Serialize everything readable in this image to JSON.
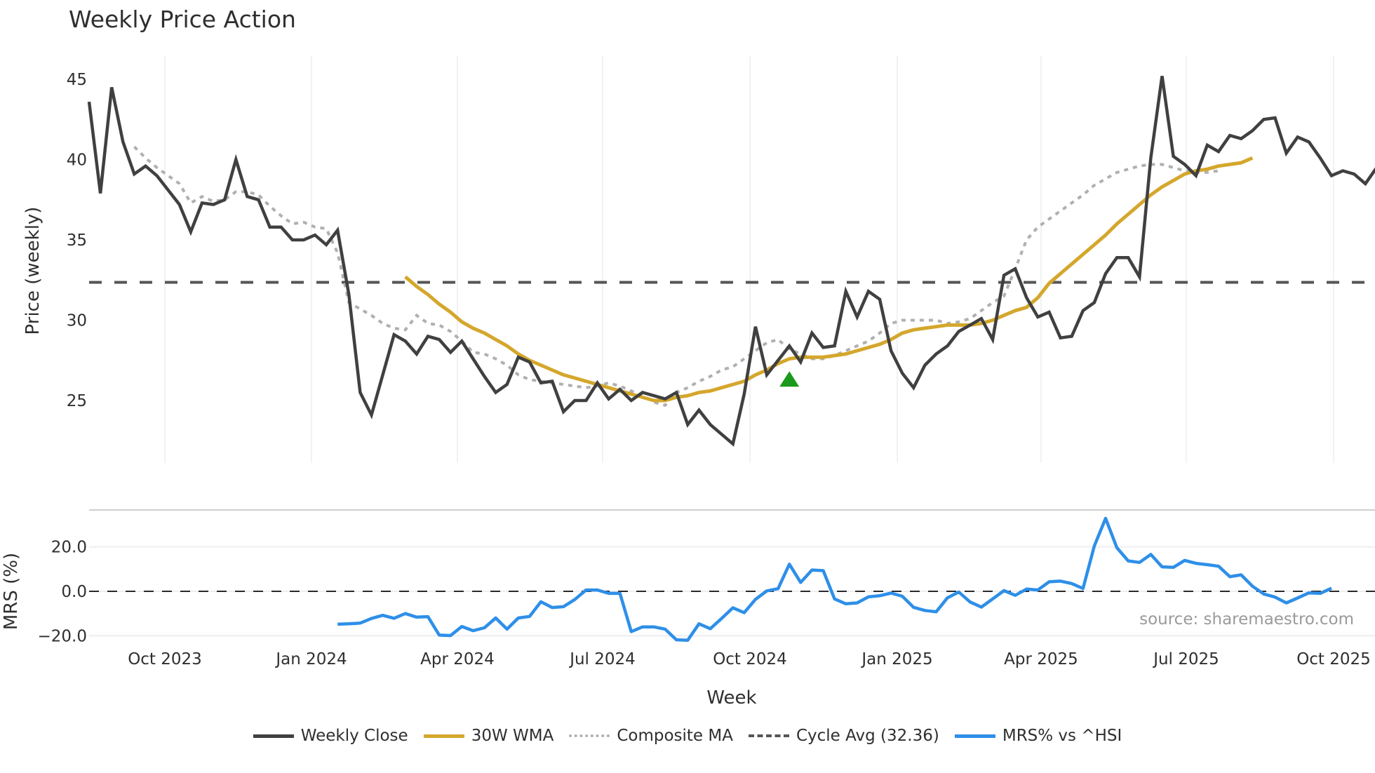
{
  "header": {
    "title": "Weekly Price Action"
  },
  "axes": {
    "price_ylabel": "Price (weekly)",
    "mrs_ylabel": "MRS (%)",
    "xlabel": "Week",
    "price_ticks": [
      "45",
      "40",
      "35",
      "30",
      "25"
    ],
    "mrs_ticks": [
      "20.0",
      "0.0",
      "−20.0"
    ],
    "x_ticks": [
      "Oct 2023",
      "Jan 2024",
      "Apr 2024",
      "Jul 2024",
      "Oct 2024",
      "Jan 2025",
      "Apr 2025",
      "Jul 2025",
      "Oct 2025"
    ]
  },
  "source_note": "source: sharemaestro.com",
  "legend": [
    {
      "label": "Weekly Close",
      "color": "#404040",
      "style": "solid"
    },
    {
      "label": "30W WMA",
      "color": "#d4a72c",
      "style": "solid"
    },
    {
      "label": "Composite MA",
      "color": "#b0b0b0",
      "style": "dotted"
    },
    {
      "label": "Cycle Avg (32.36)",
      "color": "#555555",
      "style": "dashed"
    },
    {
      "label": "MRS% vs ^HSI",
      "color": "#2e8fe8",
      "style": "solid"
    }
  ],
  "colors": {
    "close": "#404040",
    "wma": "#d4a72c",
    "composite": "#b0b0b0",
    "cycle": "#555555",
    "mrs": "#2e8fe8",
    "signal": "#1a9a1a",
    "grid": "#eceef2"
  },
  "chart_data": [
    {
      "type": "line",
      "title": "Weekly Price Action",
      "xlabel": "Week",
      "ylabel": "Price (weekly)",
      "ylim": [
        21.5,
        46
      ],
      "x_tick_labels": [
        "Oct 2023",
        "Jan 2024",
        "Apr 2024",
        "Jul 2024",
        "Oct 2024",
        "Jan 2025",
        "Apr 2025",
        "Jul 2025",
        "Oct 2025"
      ],
      "x_start": "2023-08-14",
      "x_step": "1 week",
      "series": [
        {
          "name": "Weekly Close",
          "values": [
            43.6,
            37.9,
            44.5,
            41.1,
            39.1,
            39.6,
            39.0,
            38.1,
            37.2,
            35.5,
            37.3,
            37.2,
            37.5,
            40.0,
            37.7,
            37.5,
            35.8,
            35.8,
            35.0,
            35.0,
            35.3,
            34.7,
            35.6,
            31.6,
            25.5,
            24.1,
            26.6,
            29.1,
            28.7,
            27.9,
            29.0,
            28.8,
            28.0,
            28.7,
            27.6,
            26.5,
            25.5,
            26.0,
            27.7,
            27.4,
            26.1,
            26.2,
            24.3,
            25.0,
            25.0,
            26.1,
            25.1,
            25.7,
            25.0,
            25.5,
            25.3,
            25.1,
            25.5,
            23.5,
            24.4,
            23.5,
            22.9,
            22.3,
            25.4,
            29.6,
            26.6,
            27.5,
            28.4,
            27.4,
            29.2,
            28.3,
            28.4,
            31.8,
            30.2,
            31.8,
            31.3,
            28.1,
            26.7,
            25.8,
            27.2,
            27.9,
            28.4,
            29.3,
            29.7,
            30.1,
            28.8,
            32.8,
            33.2,
            31.4,
            30.2,
            30.5,
            28.9,
            29.0,
            30.6,
            31.1,
            32.9,
            33.9,
            33.9,
            32.7,
            40.1,
            45.2,
            40.2,
            39.7,
            39.0,
            40.9,
            40.5,
            41.5,
            41.3,
            41.8,
            42.5,
            42.6,
            40.4,
            41.4,
            41.1,
            40.1,
            39.0,
            39.3,
            39.1,
            38.5,
            39.5,
            40.7
          ]
        },
        {
          "name": "30W WMA",
          "start_index": 28,
          "values": [
            32.7,
            32.1,
            31.6,
            31.0,
            30.5,
            29.9,
            29.5,
            29.2,
            28.8,
            28.4,
            27.9,
            27.5,
            27.2,
            26.9,
            26.6,
            26.4,
            26.2,
            26.0,
            25.8,
            25.6,
            25.4,
            25.2,
            25.0,
            25.0,
            25.2,
            25.3,
            25.5,
            25.6,
            25.8,
            26.0,
            26.2,
            26.6,
            26.9,
            27.3,
            27.6,
            27.7,
            27.7,
            27.7,
            27.8,
            27.9,
            28.1,
            28.3,
            28.5,
            28.8,
            29.2,
            29.4,
            29.5,
            29.6,
            29.7,
            29.7,
            29.7,
            29.8,
            30.0,
            30.3,
            30.6,
            30.8,
            31.4,
            32.3,
            32.9,
            33.5,
            34.1,
            34.7,
            35.3,
            36.0,
            36.6,
            37.2,
            37.8,
            38.3,
            38.7,
            39.1,
            39.3,
            39.4,
            39.6,
            39.7,
            39.8,
            40.1
          ]
        },
        {
          "name": "Composite MA",
          "start_index": 4,
          "values": [
            40.8,
            40.1,
            39.5,
            39.0,
            38.5,
            37.3,
            37.7,
            37.4,
            37.5,
            38.0,
            38.0,
            37.8,
            37.1,
            36.5,
            36.0,
            36.1,
            35.8,
            35.7,
            34.2,
            31.1,
            30.7,
            30.3,
            29.8,
            29.5,
            29.4,
            30.3,
            29.8,
            29.7,
            29.3,
            28.7,
            28.0,
            27.9,
            27.6,
            27.2,
            26.6,
            26.3,
            26.2,
            26.1,
            26.0,
            25.9,
            25.8,
            25.9,
            26.1,
            25.9,
            25.6,
            25.3,
            24.9,
            24.7,
            25.5,
            25.8,
            26.2,
            26.5,
            26.9,
            27.1,
            27.6,
            28.1,
            28.6,
            28.8,
            28.2,
            27.9,
            27.6,
            27.6,
            27.8,
            28.1,
            28.4,
            28.7,
            29.2,
            29.8,
            30.0,
            30.0,
            30.0,
            30.0,
            29.8,
            29.9,
            30.1,
            30.6,
            31.1,
            31.5,
            33.2,
            35.0,
            35.8,
            36.3,
            36.8,
            37.3,
            37.8,
            38.4,
            38.8,
            39.2,
            39.4,
            39.6,
            39.7,
            39.7,
            39.5,
            39.3,
            39.2,
            39.2,
            39.3
          ]
        },
        {
          "name": "Cycle Avg (32.36)",
          "constant": 32.36
        }
      ],
      "markers": [
        {
          "type": "triangle-up",
          "color": "#1a9a1a",
          "week_index": 62,
          "value": 26.3,
          "label": "buy signal"
        }
      ],
      "grid": {
        "vertical": true,
        "horizontal": false
      },
      "legend_position": "bottom"
    },
    {
      "type": "line",
      "title": "",
      "ylabel": "MRS (%)",
      "ylim": [
        -22,
        36
      ],
      "x_start_index": 22,
      "series": [
        {
          "name": "MRS% vs ^HSI",
          "start_index": 22,
          "values": [
            -14.8,
            -14.6,
            -14.3,
            -12.2,
            -10.8,
            -12.1,
            -10.0,
            -11.6,
            -11.4,
            -19.7,
            -19.9,
            -15.8,
            -17.7,
            -16.4,
            -12.0,
            -17.0,
            -12.0,
            -11.3,
            -4.7,
            -7.3,
            -6.9,
            -3.7,
            0.6,
            0.6,
            -0.9,
            -0.9,
            -18.1,
            -16.0,
            -16.0,
            -17.0,
            -21.8,
            -22.0,
            -14.6,
            -16.8,
            -12.2,
            -7.4,
            -9.6,
            -3.6,
            0.2,
            1.2,
            12.2,
            4.0,
            9.6,
            9.3,
            -3.4,
            -5.6,
            -5.2,
            -2.5,
            -2.0,
            -0.8,
            -2.2,
            -7.2,
            -8.6,
            -9.2,
            -2.9,
            -0.3,
            -4.8,
            -7.1,
            -3.4,
            0.3,
            -1.8,
            1.0,
            0.6,
            4.3,
            4.6,
            3.5,
            1.3,
            20.4,
            32.8,
            19.6,
            13.7,
            13.0,
            16.6,
            11.0,
            10.8,
            13.9,
            12.6,
            12.0,
            11.3,
            6.6,
            7.4,
            2.3,
            -1.2,
            -2.6,
            -5.2,
            -3.0,
            -0.7,
            -0.9,
            1.4
          ]
        },
        {
          "name": "Zero line",
          "constant": 0.0
        }
      ],
      "annotations": [
        "source: sharemaestro.com"
      ]
    }
  ]
}
